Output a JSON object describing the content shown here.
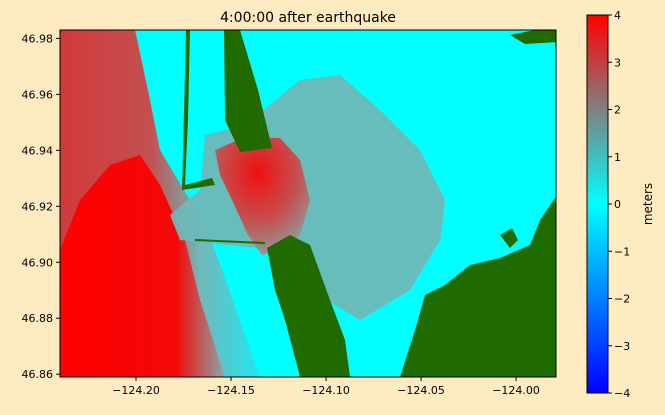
{
  "chart_data": {
    "type": "heatmap",
    "title": "4:00:00 after earthquake",
    "xlabel": "",
    "ylabel": "",
    "xlim": [
      -124.24,
      -123.979
    ],
    "ylim": [
      46.859,
      46.983
    ],
    "xticks": [
      -124.2,
      -124.15,
      -124.1,
      -124.05,
      -124.0
    ],
    "xtick_labels": [
      "−124.20",
      "−124.15",
      "−124.10",
      "−124.05",
      "−124.00"
    ],
    "yticks": [
      46.98,
      46.96,
      46.94,
      46.92,
      46.9,
      46.88,
      46.86
    ],
    "ytick_labels": [
      "46.98",
      "46.96",
      "46.94",
      "46.92",
      "46.90",
      "46.88",
      "46.86"
    ],
    "colorbar": {
      "label": "meters",
      "range": [
        -4,
        4
      ],
      "ticks": [
        4,
        3,
        2,
        1,
        0,
        -1,
        -2,
        -3,
        -4
      ],
      "tick_labels": [
        "4",
        "3",
        "2",
        "1",
        "0",
        "−1",
        "−2",
        "−3",
        "−4"
      ],
      "colors": [
        "#0000ff",
        "#00ffff",
        "#808080",
        "#ff0000"
      ]
    },
    "land_color": "#1f6b00",
    "grid": false
  }
}
